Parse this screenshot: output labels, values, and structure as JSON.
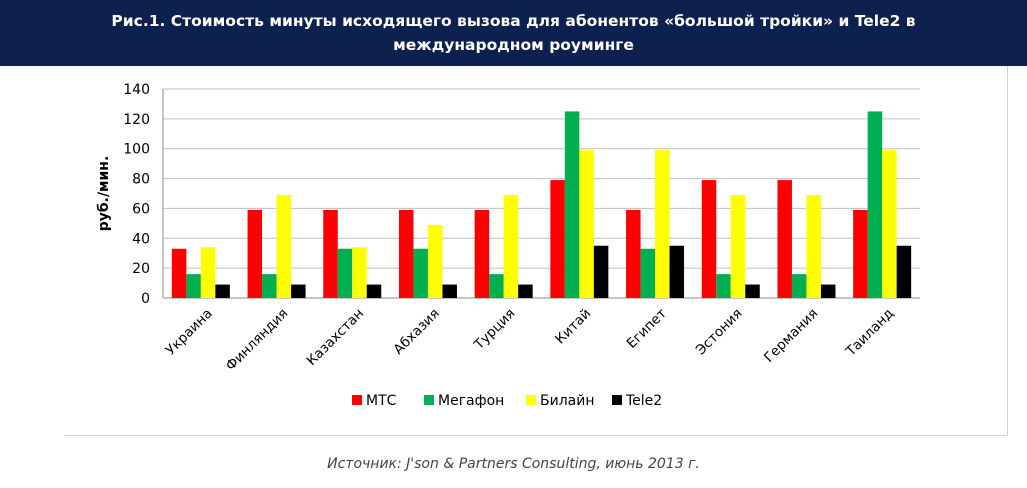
{
  "header": {
    "title": "Рис.1. Стоимость минуты исходящего вызова для абонентов «большой тройки» и Tele2 в международном роуминге"
  },
  "chart_data": {
    "type": "bar",
    "title": "",
    "xlabel": "",
    "ylabel": "руб./мин.",
    "ylim": [
      0,
      140
    ],
    "yticks": [
      0,
      20,
      40,
      60,
      80,
      100,
      120,
      140
    ],
    "grid": true,
    "legend_position": "bottom",
    "categories": [
      "Украина",
      "Финляндия",
      "Казахстан",
      "Абхазия",
      "Турция",
      "Китай",
      "Египет",
      "Эстония",
      "Германия",
      "Таиланд"
    ],
    "series": [
      {
        "name": "МТС",
        "color": "#ff0000",
        "values": [
          33,
          59,
          59,
          59,
          59,
          79,
          59,
          79,
          79,
          59
        ]
      },
      {
        "name": "Мегафон",
        "color": "#00b050",
        "values": [
          16,
          16,
          33,
          33,
          16,
          125,
          33,
          16,
          16,
          125
        ]
      },
      {
        "name": "Билайн",
        "color": "#ffff00",
        "values": [
          34,
          69,
          34,
          49,
          69,
          99,
          99,
          69,
          69,
          99
        ]
      },
      {
        "name": "Tele2",
        "color": "#000000",
        "values": [
          9,
          9,
          9,
          9,
          9,
          35,
          35,
          9,
          9,
          35
        ]
      }
    ]
  },
  "footer": {
    "source": "Источник: J'son & Partners Consulting, июнь 2013 г."
  }
}
